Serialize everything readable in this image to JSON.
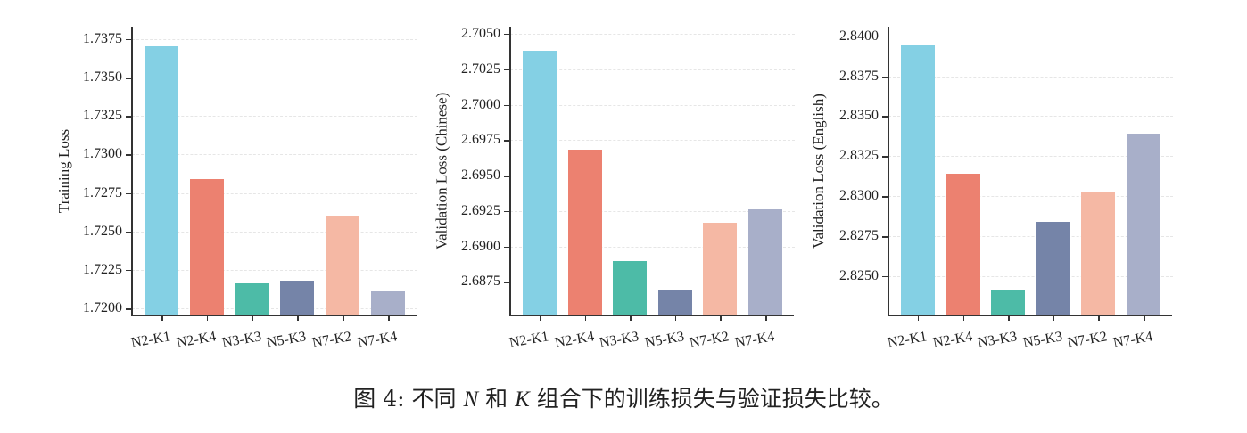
{
  "chart_data": [
    {
      "type": "bar",
      "title": "",
      "xlabel": "",
      "ylabel": "Training Loss",
      "categories": [
        "N2-K1",
        "N2-K4",
        "N3-K3",
        "N5-K3",
        "N7-K2",
        "N7-K4"
      ],
      "values": [
        1.737,
        1.7284,
        1.7216,
        1.7218,
        1.726,
        1.7211
      ],
      "colors": [
        "#84d0e4",
        "#ec8170",
        "#4dbba7",
        "#7584a8",
        "#f5b8a4",
        "#a8afc9"
      ],
      "yticks": [
        "1.7200",
        "1.7225",
        "1.7250",
        "1.7275",
        "1.7300",
        "1.7325",
        "1.7350",
        "1.7375"
      ],
      "ytick_values": [
        1.72,
        1.7225,
        1.725,
        1.7275,
        1.73,
        1.7325,
        1.735,
        1.7375
      ],
      "ylim": [
        1.7196,
        1.7383
      ],
      "grid": true,
      "legend": null
    },
    {
      "type": "bar",
      "title": "",
      "xlabel": "",
      "ylabel": "Validation Loss (Chinese)",
      "categories": [
        "N2-K1",
        "N2-K4",
        "N3-K3",
        "N5-K3",
        "N7-K2",
        "N7-K4"
      ],
      "values": [
        2.7038,
        2.6968,
        2.689,
        2.6869,
        2.6917,
        2.6926
      ],
      "colors": [
        "#84d0e4",
        "#ec8170",
        "#4dbba7",
        "#7584a8",
        "#f5b8a4",
        "#a8afc9"
      ],
      "yticks": [
        "2.6875",
        "2.6900",
        "2.6925",
        "2.6950",
        "2.6975",
        "2.7000",
        "2.7025",
        "2.7050"
      ],
      "ytick_values": [
        2.6875,
        2.69,
        2.6925,
        2.695,
        2.6975,
        2.7,
        2.7025,
        2.705
      ],
      "ylim": [
        2.6852,
        2.7055
      ],
      "grid": true,
      "legend": null
    },
    {
      "type": "bar",
      "title": "",
      "xlabel": "",
      "ylabel": "Validation Loss (English)",
      "categories": [
        "N2-K1",
        "N2-K4",
        "N3-K3",
        "N5-K3",
        "N7-K2",
        "N7-K4"
      ],
      "values": [
        2.8395,
        2.8314,
        2.8241,
        2.8284,
        2.8303,
        2.8339
      ],
      "colors": [
        "#84d0e4",
        "#ec8170",
        "#4dbba7",
        "#7584a8",
        "#f5b8a4",
        "#a8afc9"
      ],
      "yticks": [
        "2.8250",
        "2.8275",
        "2.8300",
        "2.8325",
        "2.8350",
        "2.8375",
        "2.8400"
      ],
      "ytick_values": [
        2.825,
        2.8275,
        2.83,
        2.8325,
        2.835,
        2.8375,
        2.84
      ],
      "ylim": [
        2.8226,
        2.8406
      ],
      "grid": true,
      "legend": null
    }
  ],
  "caption": {
    "prefix": "图 4: 不同 ",
    "var_n": "N",
    "mid": " 和 ",
    "var_k": "K",
    "suffix": " 组合下的训练损失与验证损失比较。"
  }
}
